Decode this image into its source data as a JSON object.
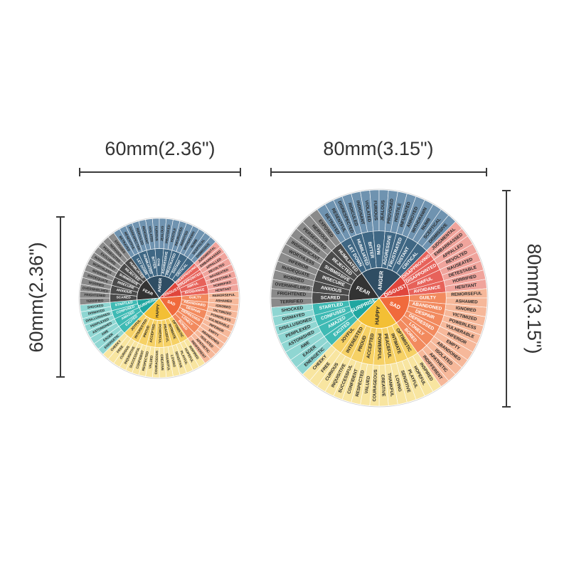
{
  "dimensions": {
    "small_width": "60mm(2.36\")",
    "small_height": "60mm(2.36\")",
    "large_width": "80mm(3.15\")",
    "large_height": "80mm(3.15\")"
  },
  "colors": {
    "anger": "#2f4d63",
    "anger_mid": "#3f6784",
    "anger_outer": "#6f93b0",
    "fear": "#333333",
    "fear_mid": "#4b4b4b",
    "fear_outer": "#8a8a8a",
    "disgust": "#e0463c",
    "disgust_mid": "#e7625a",
    "disgust_outer": "#f0a49c",
    "sad": "#f06a3c",
    "sad_mid": "#f28a5e",
    "sad_outer": "#f6b89a",
    "happy": "#f3bf35",
    "happy_mid": "#f6d165",
    "happy_outer": "#f8e5a0",
    "surprise": "#1fa6a0",
    "surprise_mid": "#3fbab4",
    "surprise_outer": "#8fd6d2"
  },
  "wheel": {
    "core": [
      {
        "label": "ANGER",
        "group": "anger"
      },
      {
        "label": "DISGUST",
        "group": "disgust"
      },
      {
        "label": "SAD",
        "group": "sad"
      },
      {
        "label": "HAPPY",
        "group": "happy"
      },
      {
        "label": "SURPRISE",
        "group": "surprise"
      },
      {
        "label": "FEAR",
        "group": "fear"
      }
    ],
    "middle": [
      {
        "label": "LET DOWN",
        "group": "anger"
      },
      {
        "label": "HUMILIATED",
        "group": "anger"
      },
      {
        "label": "BITTER",
        "group": "anger"
      },
      {
        "label": "MAD",
        "group": "anger"
      },
      {
        "label": "AGGRESSIVE",
        "group": "anger"
      },
      {
        "label": "FRUSTRATED",
        "group": "anger"
      },
      {
        "label": "DISTANT",
        "group": "anger"
      },
      {
        "label": "CRITICAL",
        "group": "anger"
      },
      {
        "label": "DISAPPROVING",
        "group": "disgust"
      },
      {
        "label": "DISAPPOINTED",
        "group": "disgust"
      },
      {
        "label": "AWFUL",
        "group": "disgust"
      },
      {
        "label": "AVOIDANCE",
        "group": "disgust"
      },
      {
        "label": "GUILTY",
        "group": "sad"
      },
      {
        "label": "ABANDONED",
        "group": "sad"
      },
      {
        "label": "DESPAIR",
        "group": "sad"
      },
      {
        "label": "DEPRESSED",
        "group": "sad"
      },
      {
        "label": "LONELY",
        "group": "sad"
      },
      {
        "label": "BORED",
        "group": "sad"
      },
      {
        "label": "OPTIMISTIC",
        "group": "happy"
      },
      {
        "label": "INTIMATE",
        "group": "happy"
      },
      {
        "label": "PEACEFUL",
        "group": "happy"
      },
      {
        "label": "POWERFUL",
        "group": "happy"
      },
      {
        "label": "ACCEPTED",
        "group": "happy"
      },
      {
        "label": "PROUD",
        "group": "happy"
      },
      {
        "label": "INTERESTED",
        "group": "happy"
      },
      {
        "label": "JOYFUL",
        "group": "happy"
      },
      {
        "label": "EXCITED",
        "group": "surprise"
      },
      {
        "label": "AMAZED",
        "group": "surprise"
      },
      {
        "label": "CONFUSED",
        "group": "surprise"
      },
      {
        "label": "STARTLED",
        "group": "surprise"
      },
      {
        "label": "SCARED",
        "group": "fear"
      },
      {
        "label": "ANXIOUS",
        "group": "fear"
      },
      {
        "label": "INSECURE",
        "group": "fear"
      },
      {
        "label": "SUBMISSIVE",
        "group": "fear"
      },
      {
        "label": "REJECTED",
        "group": "fear"
      },
      {
        "label": "HUMILIATED",
        "group": "fear"
      }
    ],
    "outer": [
      {
        "label": "BETRAYED",
        "group": "anger"
      },
      {
        "label": "RESENTFUL",
        "group": "anger"
      },
      {
        "label": "DISRESPECTED",
        "group": "anger"
      },
      {
        "label": "RIDICULED",
        "group": "anger"
      },
      {
        "label": "INDIGNANT",
        "group": "anger"
      },
      {
        "label": "VIOLATED",
        "group": "anger"
      },
      {
        "label": "FURIOUS",
        "group": "anger"
      },
      {
        "label": "JEALOUS",
        "group": "anger"
      },
      {
        "label": "PROVOKED",
        "group": "anger"
      },
      {
        "label": "HOSTILE",
        "group": "anger"
      },
      {
        "label": "INFURIATED",
        "group": "anger"
      },
      {
        "label": "ANNOYED",
        "group": "anger"
      },
      {
        "label": "WITHDRAWN",
        "group": "anger"
      },
      {
        "label": "NUMB",
        "group": "anger"
      },
      {
        "label": "SCEPTICAL",
        "group": "anger"
      },
      {
        "label": "DISMISSIVE",
        "group": "anger"
      },
      {
        "label": "JUDGMENTAL",
        "group": "disgust"
      },
      {
        "label": "EMBARRASSED",
        "group": "disgust"
      },
      {
        "label": "APPALLED",
        "group": "disgust"
      },
      {
        "label": "REVOLTED",
        "group": "disgust"
      },
      {
        "label": "NAUSEATED",
        "group": "disgust"
      },
      {
        "label": "DETESTABLE",
        "group": "disgust"
      },
      {
        "label": "HORRIFIED",
        "group": "disgust"
      },
      {
        "label": "HESITANT",
        "group": "disgust"
      },
      {
        "label": "REMORSEFUL",
        "group": "sad"
      },
      {
        "label": "ASHAMED",
        "group": "sad"
      },
      {
        "label": "IGNORED",
        "group": "sad"
      },
      {
        "label": "VICTIMIZED",
        "group": "sad"
      },
      {
        "label": "POWERLESS",
        "group": "sad"
      },
      {
        "label": "VULNERABLE",
        "group": "sad"
      },
      {
        "label": "INFERIOR",
        "group": "sad"
      },
      {
        "label": "EMPTY",
        "group": "sad"
      },
      {
        "label": "ABANDONED",
        "group": "sad"
      },
      {
        "label": "ISOLATED",
        "group": "sad"
      },
      {
        "label": "APATHETIC",
        "group": "sad"
      },
      {
        "label": "INDIFFERENT",
        "group": "sad"
      },
      {
        "label": "INSPIRED",
        "group": "happy"
      },
      {
        "label": "HOPEFUL",
        "group": "happy"
      },
      {
        "label": "PLAYFUL",
        "group": "happy"
      },
      {
        "label": "SENSITIVE",
        "group": "happy"
      },
      {
        "label": "LOVING",
        "group": "happy"
      },
      {
        "label": "THANKFUL",
        "group": "happy"
      },
      {
        "label": "CREATIVE",
        "group": "happy"
      },
      {
        "label": "COURAGEOUS",
        "group": "happy"
      },
      {
        "label": "VALUED",
        "group": "happy"
      },
      {
        "label": "RESPECTED",
        "group": "happy"
      },
      {
        "label": "CONFIDENT",
        "group": "happy"
      },
      {
        "label": "SUCCESSFUL",
        "group": "happy"
      },
      {
        "label": "INQUISITIVE",
        "group": "happy"
      },
      {
        "label": "CURIOUS",
        "group": "happy"
      },
      {
        "label": "FREE",
        "group": "happy"
      },
      {
        "label": "CHEEKY",
        "group": "happy"
      },
      {
        "label": "ENERGETIC",
        "group": "surprise"
      },
      {
        "label": "EAGER",
        "group": "surprise"
      },
      {
        "label": "AWE",
        "group": "surprise"
      },
      {
        "label": "ASTONISHED",
        "group": "surprise"
      },
      {
        "label": "PERPLEXED",
        "group": "surprise"
      },
      {
        "label": "DISILLUSIONED",
        "group": "surprise"
      },
      {
        "label": "DISMAYED",
        "group": "surprise"
      },
      {
        "label": "SHOCKED",
        "group": "surprise"
      },
      {
        "label": "TERRIFIED",
        "group": "fear"
      },
      {
        "label": "FRIGHTENED",
        "group": "fear"
      },
      {
        "label": "OVERWHELMED",
        "group": "fear"
      },
      {
        "label": "WORRIED",
        "group": "fear"
      },
      {
        "label": "INADEQUATE",
        "group": "fear"
      },
      {
        "label": "INFERIOR",
        "group": "fear"
      },
      {
        "label": "WORTHLESS",
        "group": "fear"
      },
      {
        "label": "INSIGNIFICANT",
        "group": "fear"
      },
      {
        "label": "EXCLUDED",
        "group": "fear"
      },
      {
        "label": "PERSECUTED",
        "group": "fear"
      },
      {
        "label": "NERVOUS",
        "group": "fear"
      },
      {
        "label": "EXPOSED",
        "group": "fear"
      }
    ]
  }
}
